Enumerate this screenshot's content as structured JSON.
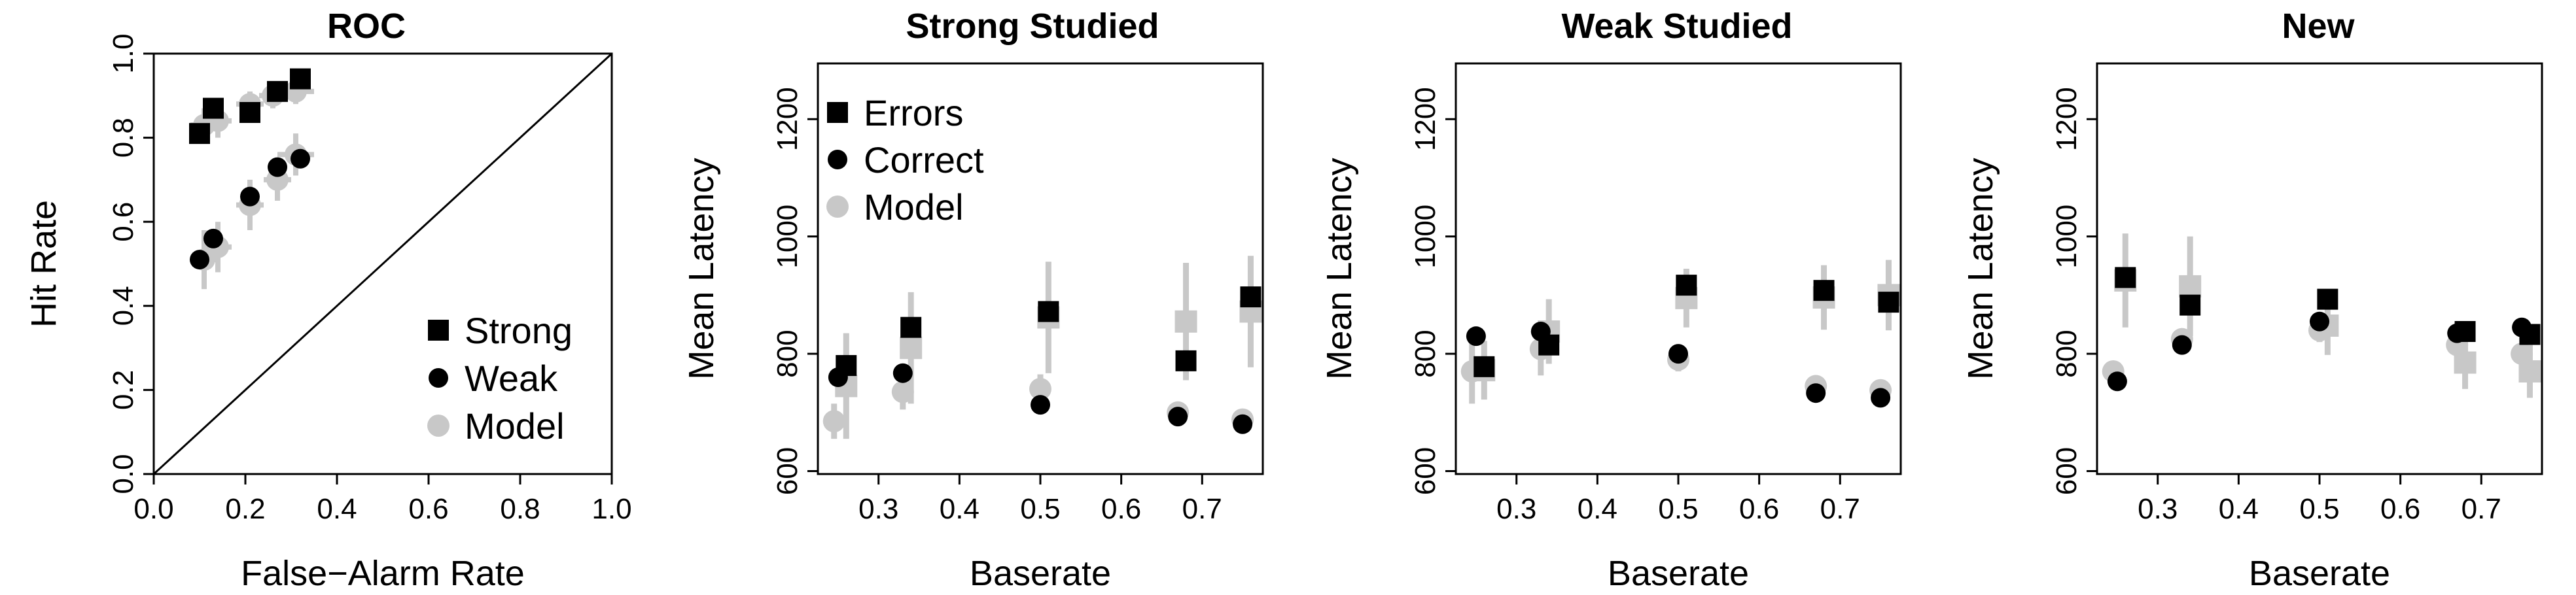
{
  "chart_data": [
    {
      "type": "scatter",
      "title": "ROC",
      "xlabel": "False−Alarm Rate",
      "ylabel": "Hit Rate",
      "xlim": [
        0,
        1
      ],
      "ylim": [
        0,
        1
      ],
      "xticks": [
        "0.0",
        "0.2",
        "0.4",
        "0.6",
        "0.8",
        "1.0"
      ],
      "yticks": [
        "0.0",
        "0.2",
        "0.4",
        "0.6",
        "0.8",
        "1.0"
      ],
      "legend": {
        "position": "bottom-right",
        "entries": [
          {
            "label": "Strong",
            "marker": "square",
            "color": "#000000"
          },
          {
            "label": "Weak",
            "marker": "circle",
            "color": "#000000"
          },
          {
            "label": "Model",
            "marker": "circle",
            "color": "#c8c8c8"
          }
        ]
      },
      "diagonal": true,
      "series": [
        {
          "name": "Strong",
          "marker": "square",
          "color": "#000000",
          "points": [
            [
              0.1,
              0.81
            ],
            [
              0.13,
              0.87
            ],
            [
              0.21,
              0.86
            ],
            [
              0.27,
              0.91
            ],
            [
              0.32,
              0.94
            ]
          ]
        },
        {
          "name": "Weak",
          "marker": "circle",
          "color": "#000000",
          "points": [
            [
              0.1,
              0.51
            ],
            [
              0.13,
              0.56
            ],
            [
              0.21,
              0.66
            ],
            [
              0.27,
              0.73
            ],
            [
              0.32,
              0.75
            ]
          ]
        },
        {
          "name": "Model",
          "marker": "circle",
          "color": "#c8c8c8",
          "points": [
            [
              0.11,
              0.83
            ],
            [
              0.14,
              0.84
            ],
            [
              0.21,
              0.88
            ],
            [
              0.26,
              0.9
            ],
            [
              0.31,
              0.91
            ],
            [
              0.11,
              0.51
            ],
            [
              0.14,
              0.54
            ],
            [
              0.21,
              0.64
            ],
            [
              0.27,
              0.7
            ],
            [
              0.31,
              0.76
            ]
          ],
          "err_x": [
            0.03,
            0.03,
            0.03,
            0.03,
            0.04,
            0.03,
            0.03,
            0.03,
            0.03,
            0.04
          ],
          "err_y": [
            0.04,
            0.04,
            0.03,
            0.03,
            0.03,
            0.07,
            0.06,
            0.06,
            0.05,
            0.05
          ]
        }
      ]
    },
    {
      "type": "scatter",
      "title": "Strong Studied",
      "xlabel": "Baserate",
      "ylabel": "Mean Latency",
      "xlim": [
        0.225,
        0.775
      ],
      "ylim": [
        595,
        1295
      ],
      "xticks": [
        "0.3",
        "0.4",
        "0.5",
        "0.6",
        "0.7"
      ],
      "yticks": [
        "600",
        "800",
        "1000",
        "1200"
      ],
      "legend": {
        "position": "top-left",
        "entries": [
          {
            "label": "Errors",
            "marker": "square",
            "color": "#000000"
          },
          {
            "label": "Correct",
            "marker": "circle",
            "color": "#000000"
          },
          {
            "label": "Model",
            "marker": "circle",
            "color": "#c8c8c8"
          }
        ]
      },
      "series": [
        {
          "name": "Errors",
          "marker": "square",
          "color": "#000000",
          "points": [
            [
              0.26,
              780
            ],
            [
              0.34,
              845
            ],
            [
              0.51,
              872
            ],
            [
              0.68,
              788
            ],
            [
              0.76,
              897
            ]
          ]
        },
        {
          "name": "Correct",
          "marker": "circle",
          "color": "#000000",
          "points": [
            [
              0.25,
              760
            ],
            [
              0.33,
              767
            ],
            [
              0.5,
              713
            ],
            [
              0.67,
              693
            ],
            [
              0.75,
              680
            ]
          ]
        },
        {
          "name": "Model Errors",
          "marker": "square",
          "color": "#c8c8c8",
          "points": [
            [
              0.26,
              745
            ],
            [
              0.34,
              810
            ],
            [
              0.51,
              862
            ],
            [
              0.68,
              855
            ],
            [
              0.76,
              872
            ]
          ],
          "err": [
            90,
            95,
            95,
            100,
            95
          ]
        },
        {
          "name": "Model Correct",
          "marker": "circle",
          "color": "#c8c8c8",
          "points": [
            [
              0.245,
              685
            ],
            [
              0.33,
              735
            ],
            [
              0.5,
              740
            ],
            [
              0.67,
              700
            ],
            [
              0.75,
              688
            ]
          ],
          "err": [
            30,
            30,
            25,
            15,
            12
          ]
        }
      ]
    },
    {
      "type": "scatter",
      "title": "Weak Studied",
      "xlabel": "Baserate",
      "ylabel": "Mean Latency",
      "xlim": [
        0.225,
        0.775
      ],
      "ylim": [
        595,
        1295
      ],
      "xticks": [
        "0.3",
        "0.4",
        "0.5",
        "0.6",
        "0.7"
      ],
      "yticks": [
        "600",
        "800",
        "1000",
        "1200"
      ],
      "series": [
        {
          "name": "Errors",
          "marker": "square",
          "color": "#000000",
          "points": [
            [
              0.26,
              778
            ],
            [
              0.34,
              815
            ],
            [
              0.51,
              917
            ],
            [
              0.68,
              908
            ],
            [
              0.76,
              888
            ]
          ]
        },
        {
          "name": "Correct",
          "marker": "circle",
          "color": "#000000",
          "points": [
            [
              0.25,
              830
            ],
            [
              0.33,
              838
            ],
            [
              0.5,
              800
            ],
            [
              0.67,
              733
            ],
            [
              0.75,
              725
            ]
          ]
        },
        {
          "name": "Model Errors",
          "marker": "square",
          "color": "#c8c8c8",
          "points": [
            [
              0.26,
              772
            ],
            [
              0.34,
              838
            ],
            [
              0.51,
              895
            ],
            [
              0.68,
              896
            ],
            [
              0.76,
              900
            ]
          ],
          "err": [
            50,
            55,
            50,
            55,
            60
          ]
        },
        {
          "name": "Model Correct",
          "marker": "circle",
          "color": "#c8c8c8",
          "points": [
            [
              0.245,
              770
            ],
            [
              0.33,
              808
            ],
            [
              0.5,
              790
            ],
            [
              0.67,
              745
            ],
            [
              0.75,
              738
            ]
          ],
          "err": [
            55,
            45,
            20,
            15,
            12
          ]
        }
      ]
    },
    {
      "type": "scatter",
      "title": "New",
      "xlabel": "Baserate",
      "ylabel": "Mean Latency",
      "xlim": [
        0.225,
        0.775
      ],
      "ylim": [
        595,
        1295
      ],
      "xticks": [
        "0.3",
        "0.4",
        "0.5",
        "0.6",
        "0.7"
      ],
      "yticks": [
        "600",
        "800",
        "1000",
        "1200"
      ],
      "series": [
        {
          "name": "Errors",
          "marker": "square",
          "color": "#000000",
          "points": [
            [
              0.26,
              930
            ],
            [
              0.34,
              883
            ],
            [
              0.51,
              893
            ],
            [
              0.68,
              838
            ],
            [
              0.76,
              833
            ]
          ]
        },
        {
          "name": "Correct",
          "marker": "circle",
          "color": "#000000",
          "points": [
            [
              0.25,
              753
            ],
            [
              0.33,
              815
            ],
            [
              0.5,
              855
            ],
            [
              0.67,
              835
            ],
            [
              0.75,
              845
            ]
          ]
        },
        {
          "name": "Model Errors",
          "marker": "square",
          "color": "#c8c8c8",
          "points": [
            [
              0.26,
              925
            ],
            [
              0.34,
              915
            ],
            [
              0.51,
              848
            ],
            [
              0.68,
              785
            ],
            [
              0.76,
              770
            ]
          ],
          "err": [
            80,
            85,
            50,
            45,
            45
          ]
        },
        {
          "name": "Model Correct",
          "marker": "circle",
          "color": "#c8c8c8",
          "points": [
            [
              0.245,
              770
            ],
            [
              0.33,
              825
            ],
            [
              0.5,
              840
            ],
            [
              0.67,
              815
            ],
            [
              0.75,
              800
            ]
          ],
          "err": [
            15,
            15,
            20,
            20,
            15
          ]
        }
      ]
    }
  ]
}
